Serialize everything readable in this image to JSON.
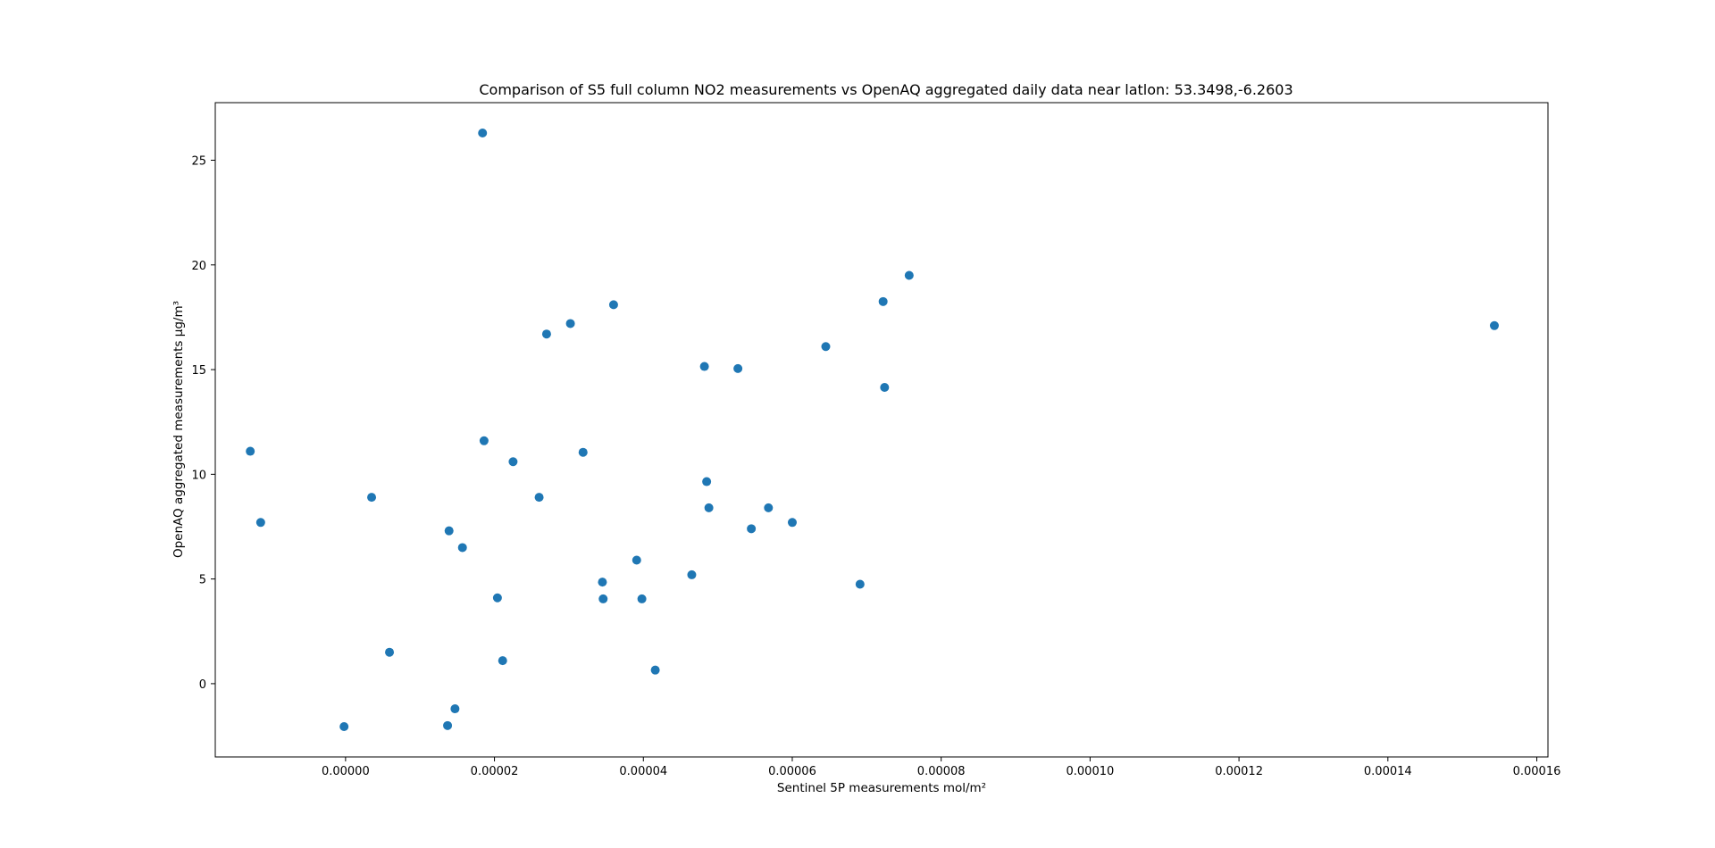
{
  "chart_data": {
    "type": "scatter",
    "title": "Comparison of S5 full column NO2 measurements vs OpenAQ aggregated daily data near latlon: 53.3498,-6.2603",
    "xlabel": "Sentinel 5P measurements mol/m²",
    "ylabel": "OpenAQ aggregated measurements µg/m³",
    "xlim": [
      -1.75e-05,
      0.0001615
    ],
    "ylim": [
      -3.5,
      27.75
    ],
    "xticks": [
      0.0,
      2e-05,
      4e-05,
      6e-05,
      8e-05,
      0.0001,
      0.00012,
      0.00014,
      0.00016
    ],
    "xtick_labels": [
      "0.00000",
      "0.00002",
      "0.00004",
      "0.00006",
      "0.00008",
      "0.00010",
      "0.00012",
      "0.00014",
      "0.00016"
    ],
    "yticks": [
      0,
      5,
      10,
      15,
      20,
      25
    ],
    "ytick_labels": [
      "0",
      "5",
      "10",
      "15",
      "20",
      "25"
    ],
    "grid": false,
    "marker_color": "#1f77b4",
    "points": [
      {
        "x": -1.28e-05,
        "y": 11.1
      },
      {
        "x": -1.14e-05,
        "y": 7.7
      },
      {
        "x": -2e-07,
        "y": -2.05
      },
      {
        "x": 3.5e-06,
        "y": 8.9
      },
      {
        "x": 5.9e-06,
        "y": 1.5
      },
      {
        "x": 1.37e-05,
        "y": -2.0
      },
      {
        "x": 1.39e-05,
        "y": 7.3
      },
      {
        "x": 1.47e-05,
        "y": -1.2
      },
      {
        "x": 1.57e-05,
        "y": 6.5
      },
      {
        "x": 1.84e-05,
        "y": 26.3
      },
      {
        "x": 1.86e-05,
        "y": 11.6
      },
      {
        "x": 2.04e-05,
        "y": 4.1
      },
      {
        "x": 2.11e-05,
        "y": 1.1
      },
      {
        "x": 2.25e-05,
        "y": 10.6
      },
      {
        "x": 2.6e-05,
        "y": 8.9
      },
      {
        "x": 2.7e-05,
        "y": 16.7
      },
      {
        "x": 3.02e-05,
        "y": 17.2
      },
      {
        "x": 3.19e-05,
        "y": 11.05
      },
      {
        "x": 3.45e-05,
        "y": 4.85
      },
      {
        "x": 3.46e-05,
        "y": 4.05
      },
      {
        "x": 3.6e-05,
        "y": 18.1
      },
      {
        "x": 3.91e-05,
        "y": 5.9
      },
      {
        "x": 3.98e-05,
        "y": 4.05
      },
      {
        "x": 4.16e-05,
        "y": 0.65
      },
      {
        "x": 4.65e-05,
        "y": 5.2
      },
      {
        "x": 4.82e-05,
        "y": 15.15
      },
      {
        "x": 4.85e-05,
        "y": 9.65
      },
      {
        "x": 4.88e-05,
        "y": 8.4
      },
      {
        "x": 5.27e-05,
        "y": 15.05
      },
      {
        "x": 5.45e-05,
        "y": 7.4
      },
      {
        "x": 5.68e-05,
        "y": 8.4
      },
      {
        "x": 6e-05,
        "y": 7.7
      },
      {
        "x": 6.45e-05,
        "y": 16.1
      },
      {
        "x": 6.91e-05,
        "y": 4.75
      },
      {
        "x": 7.22e-05,
        "y": 18.25
      },
      {
        "x": 7.24e-05,
        "y": 14.15
      },
      {
        "x": 7.57e-05,
        "y": 19.5
      },
      {
        "x": 0.0001543,
        "y": 17.1
      }
    ]
  }
}
